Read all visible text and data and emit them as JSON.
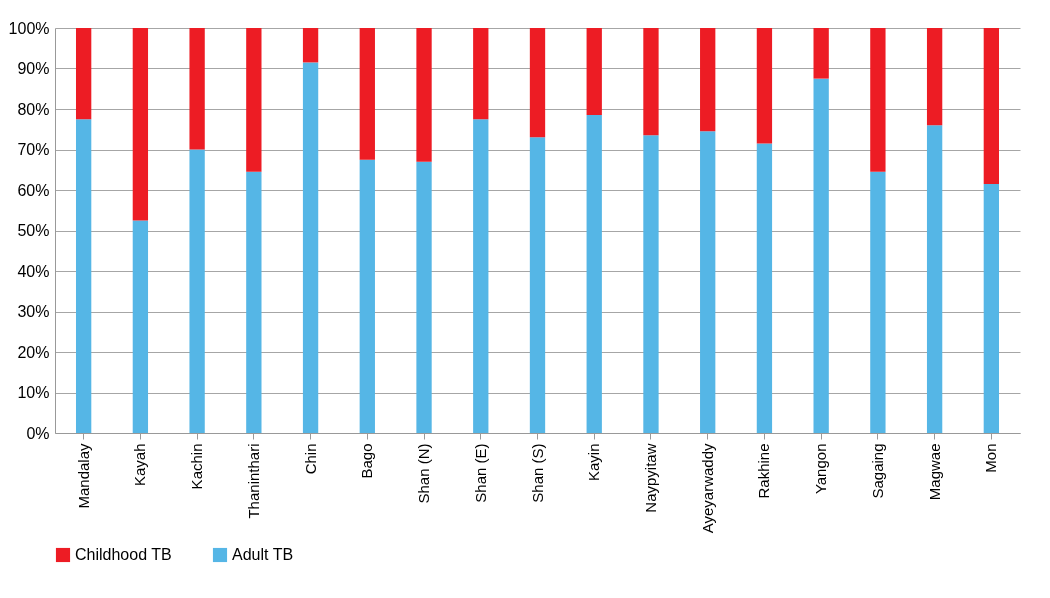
{
  "chart_data": {
    "type": "bar",
    "stacked": true,
    "categories": [
      "Mandalay",
      "Kayah",
      "Kachin",
      "Thaninthari",
      "Chin",
      "Bago",
      "Shan (N)",
      "Shan (E)",
      "Shan (S)",
      "Kayin",
      "Naypyitaw",
      "Ayeyarwaddy",
      "Rakhine",
      "Yangon",
      "Sagaing",
      "Magwae",
      "Mon"
    ],
    "series": [
      {
        "name": "Adult TB",
        "color": "#55b6e6",
        "values": [
          77.5,
          52.5,
          70,
          64.5,
          91.5,
          67.5,
          67,
          77.5,
          73,
          78.5,
          73.5,
          74.5,
          71.5,
          87.5,
          64.5,
          76,
          61.5
        ]
      },
      {
        "name": "Childhood TB",
        "color": "#ed1c24",
        "values": [
          22.5,
          47.5,
          30,
          35.5,
          8.5,
          32.5,
          33,
          22.5,
          27,
          21.5,
          26.5,
          25.5,
          28.5,
          12.5,
          35.5,
          24,
          38.5
        ]
      }
    ],
    "ylim": [
      0,
      100
    ],
    "yticks": [
      {
        "value": 0,
        "label": "0%"
      },
      {
        "value": 10,
        "label": "10%"
      },
      {
        "value": 20,
        "label": "20%"
      },
      {
        "value": 30,
        "label": "30%"
      },
      {
        "value": 40,
        "label": "40%"
      },
      {
        "value": 50,
        "label": "50%"
      },
      {
        "value": 60,
        "label": "60%"
      },
      {
        "value": 70,
        "label": "70%"
      },
      {
        "value": 80,
        "label": "80%"
      },
      {
        "value": 90,
        "label": "90%"
      },
      {
        "value": 100,
        "label": "100%"
      }
    ],
    "grid": "y",
    "legend": "bottom"
  }
}
